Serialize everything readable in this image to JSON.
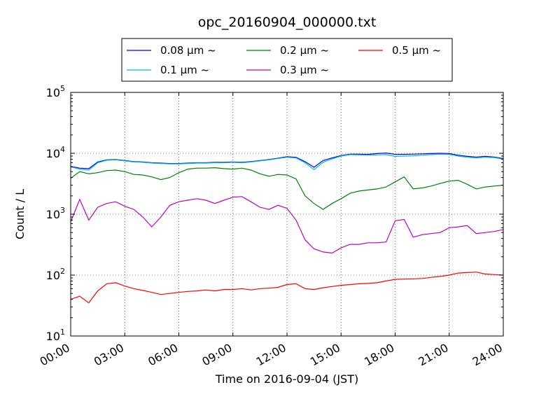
{
  "chart_data": {
    "type": "line",
    "title": "opc_20160904_000000.txt",
    "xlabel": "Time on 2016-09-04 (JST)",
    "ylabel": "Count / L",
    "y_scale": "log",
    "ylim": [
      10,
      100000
    ],
    "xlim": [
      "2016-09-04 00:00",
      "2016-09-05 00:00"
    ],
    "grid": true,
    "legend_position": "top",
    "x_ticks": [
      "00:00",
      "03:00",
      "06:00",
      "09:00",
      "12:00",
      "15:00",
      "18:00",
      "21:00",
      "24:00"
    ],
    "y_ticks": [
      {
        "base": "10",
        "exp": "1"
      },
      {
        "base": "10",
        "exp": "2"
      },
      {
        "base": "10",
        "exp": "3"
      },
      {
        "base": "10",
        "exp": "4"
      },
      {
        "base": "10",
        "exp": "5"
      }
    ],
    "x_hours": [
      0,
      0.5,
      1,
      1.5,
      2,
      2.5,
      3,
      3.5,
      4,
      4.5,
      5,
      5.5,
      6,
      6.5,
      7,
      7.5,
      8,
      8.5,
      9,
      9.5,
      10,
      10.5,
      11,
      11.5,
      12,
      12.5,
      13,
      13.5,
      14,
      14.5,
      15,
      15.5,
      16,
      16.5,
      17,
      17.5,
      18,
      18.5,
      19,
      19.5,
      20,
      20.5,
      21,
      21.5,
      22,
      22.5,
      23,
      23.5,
      24
    ],
    "series": [
      {
        "name": "0.08 μm ~",
        "color": "#0000ff",
        "values": [
          6100,
          5700,
          5600,
          7200,
          7800,
          7900,
          7600,
          7300,
          7200,
          7000,
          6900,
          6800,
          6800,
          6900,
          7000,
          7000,
          7100,
          7100,
          7200,
          7100,
          7300,
          7600,
          7900,
          8300,
          8800,
          8600,
          7300,
          5900,
          7600,
          8400,
          9200,
          9700,
          9700,
          9600,
          9900,
          10100,
          9600,
          9600,
          9700,
          9800,
          9900,
          10000,
          9900,
          9300,
          8900,
          8700,
          8900,
          8700,
          8200
        ]
      },
      {
        "name": "0.1 μm ~",
        "color": "#00bfbf",
        "values": [
          6000,
          5500,
          5300,
          7000,
          7700,
          7800,
          7500,
          7200,
          7100,
          6900,
          6800,
          6700,
          6700,
          6800,
          6900,
          6900,
          7000,
          7000,
          7100,
          7000,
          7200,
          7500,
          7800,
          8200,
          8600,
          8400,
          7000,
          5400,
          7100,
          8100,
          9000,
          9500,
          9400,
          9300,
          9400,
          9500,
          8900,
          9000,
          9100,
          9300,
          9500,
          9700,
          9600,
          9000,
          8600,
          8400,
          8600,
          8500,
          8000
        ]
      },
      {
        "name": "0.2 μm ~",
        "color": "#008000",
        "values": [
          3900,
          5000,
          4600,
          4800,
          5200,
          5300,
          5000,
          4500,
          4400,
          4100,
          3700,
          4000,
          4800,
          5500,
          5700,
          5700,
          5800,
          5600,
          5500,
          5700,
          5300,
          4600,
          4200,
          4500,
          4400,
          3800,
          2000,
          1500,
          1200,
          1500,
          1800,
          2200,
          2400,
          2500,
          2600,
          2800,
          3400,
          4100,
          2600,
          2700,
          2900,
          3200,
          3500,
          3600,
          3100,
          2600,
          2800,
          2900,
          3000
        ]
      },
      {
        "name": "0.3 μm ~",
        "color": "#bf00bf",
        "values": [
          750,
          1750,
          800,
          1300,
          1500,
          1600,
          1350,
          1200,
          900,
          620,
          900,
          1400,
          1600,
          1700,
          1800,
          1700,
          1500,
          1700,
          1900,
          1950,
          1600,
          1300,
          1200,
          1400,
          1250,
          800,
          380,
          270,
          240,
          230,
          280,
          320,
          320,
          340,
          340,
          350,
          780,
          820,
          420,
          460,
          480,
          500,
          600,
          620,
          650,
          480,
          500,
          520,
          560
        ]
      },
      {
        "name": "0.5 μm ~",
        "color": "#ff0000",
        "values": [
          40,
          45,
          35,
          55,
          72,
          75,
          66,
          60,
          56,
          52,
          48,
          50,
          52,
          54,
          55,
          57,
          55,
          58,
          58,
          60,
          57,
          60,
          61,
          63,
          70,
          72,
          60,
          58,
          62,
          65,
          68,
          70,
          72,
          73,
          75,
          80,
          85,
          86,
          87,
          88,
          92,
          95,
          100,
          108,
          110,
          112,
          104,
          102,
          100
        ]
      }
    ]
  }
}
